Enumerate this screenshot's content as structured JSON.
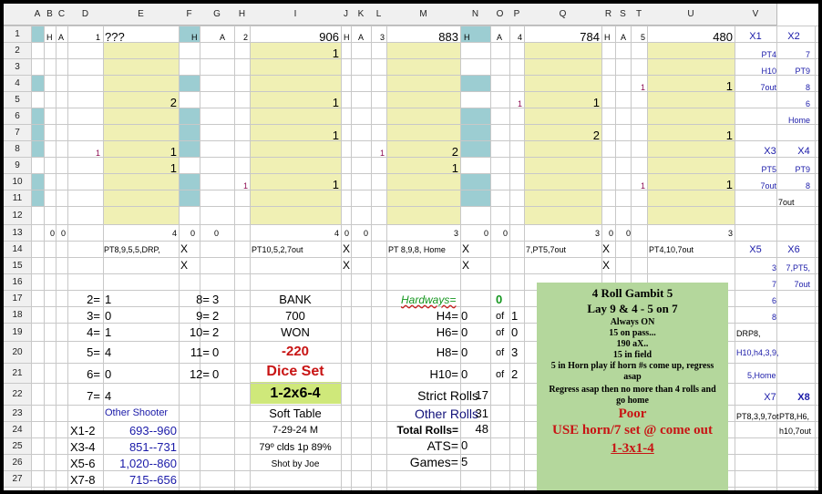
{
  "column_headers": [
    "A",
    "B",
    "C",
    "D",
    "E",
    "F",
    "G",
    "H",
    "I",
    "J",
    "K",
    "L",
    "M",
    "N",
    "O",
    "P",
    "Q",
    "R",
    "S",
    "T",
    "U",
    "V"
  ],
  "row_headers": [
    "1",
    "2",
    "3",
    "4",
    "5",
    "6",
    "7",
    "8",
    "9",
    "10",
    "11",
    "12",
    "13",
    "14",
    "15",
    "16",
    "17",
    "18",
    "19",
    "20",
    "21",
    "22",
    "23",
    "24",
    "25",
    "26",
    "27"
  ],
  "colors": {
    "yellow_fill": "#f0f0b4",
    "teal_fill": "#9ccdd2",
    "gambit_fill": "#b4d79c",
    "number_blue": "#1a1aa8",
    "count_magenta": "#8b0a50",
    "red": "#c81414",
    "green": "#14961e"
  },
  "row1": {
    "h1": "H",
    "a1": "A",
    "n1": "1",
    "q1": "???",
    "h2": "H",
    "a2": "A",
    "n2": "2",
    "s2": "906",
    "h3": "H",
    "a3": "A",
    "n3": "3",
    "s3": "883",
    "h4": "H",
    "a4": "A",
    "n4": "4",
    "s4": "784",
    "h5": "H",
    "a5": "A",
    "n5": "5",
    "s5": "480",
    "x1": "X1",
    "x2": "X2"
  },
  "grid": {
    "d5": "2",
    "d8": "1",
    "d9": "1",
    "c8": "1",
    "h2": "1",
    "h5": "1",
    "h7": "1",
    "h10": "1",
    "g10": "1",
    "l8": "2",
    "l9": "1",
    "k8": "1",
    "p5": "1",
    "p7": "2",
    "o5": "1",
    "t4": "1",
    "t7": "1",
    "t10": "1",
    "s4": "1",
    "s10": "1"
  },
  "row13": {
    "a": "0",
    "b": "0",
    "d": "4",
    "e": "0",
    "f": "0",
    "h": "4",
    "i": "0",
    "j": "0",
    "l": "3",
    "m": "0",
    "n": "0",
    "p": "3",
    "q": "0",
    "r": "0",
    "t": "3"
  },
  "row14": {
    "d": "PT8,9,5,5,DRP,",
    "e": "X",
    "h": "PT10,5,2,7out",
    "i": "X",
    "l": "PT 8,9,8, Home",
    "m": "X",
    "p": "7,PT5,7out",
    "q": "X",
    "t": "PT4,10,7out"
  },
  "row15": {
    "e": "X",
    "i": "X",
    "m": "X",
    "q": "X"
  },
  "right_panel": {
    "u2": "PT4",
    "v2": "7",
    "u3": "H10",
    "v3": "PT9",
    "u4": "7out",
    "v4": "8",
    "v5": "6",
    "v6": "Home",
    "x3": "X3",
    "x4": "X4",
    "u9": "PT5",
    "v9": "PT9",
    "u10": "7out",
    "v10": "8",
    "v11": "7out",
    "x5": "X5",
    "x6": "X6",
    "u15": "3",
    "v15": "7,PT5,",
    "u16": "7",
    "v16": "7out",
    "u17": "6",
    "u18": "8",
    "u19": "DRP8,",
    "u20": "H10,h4,3,9,",
    "u21": "5,Home",
    "x7": "X7",
    "x8": "X8",
    "u23": "PT8,3,9,7ot",
    "v23": "PT8,H6,",
    "v24": "h10,7out"
  },
  "rolls": {
    "c17": "2=",
    "d17": "1",
    "e17": "8=",
    "f17": "3",
    "c18": "3=",
    "d18": "0",
    "e18": "9=",
    "f18": "2",
    "c19": "4=",
    "d19": "1",
    "e19": "10=",
    "f19": "2",
    "c20": "5=",
    "d20": "4",
    "e20": "11=",
    "f20": "0",
    "c21": "6=",
    "d21": "0",
    "e21": "12=",
    "f21": "0",
    "c22": "7=",
    "d22": "4",
    "other_shooter": "Other  Shooter",
    "x12": "X1-2",
    "x12v": "693--960",
    "x34": "X3-4",
    "x34v": "851--731",
    "x56": "X5-6",
    "x56v": "1,020--860",
    "x78": "X7-8",
    "x78v": "715--656"
  },
  "bank": {
    "bank": "BANK",
    "bank_v": "700",
    "won": "WON",
    "won_v": "-220",
    "dice_set": "Dice Set",
    "dice_set_v": "1-2x6-4",
    "table": "Soft Table",
    "date": "7-29-24 M",
    "weather": "79º clds  1p 89%",
    "shot_by": "Shot by Joe"
  },
  "hardways": {
    "title": "Hardways=",
    "total": "0",
    "h4": "H4=",
    "h4v": "0",
    "h4of": "of",
    "h4n": "1",
    "h6": "H6=",
    "h6v": "0",
    "h6of": "of",
    "h6n": "0",
    "h8": "H8=",
    "h8v": "0",
    "h8of": "of",
    "h8n": "3",
    "h10": "H10=",
    "h10v": "0",
    "h10of": "of",
    "h10n": "2"
  },
  "stats": {
    "strict": "Strict Rolls",
    "strict_v": "17",
    "other": "Other Rolls",
    "other_v": "31",
    "total": "Total Rolls=",
    "total_v": "48",
    "ats": "ATS=",
    "ats_v": "0",
    "games": "Games=",
    "games_v": "5"
  },
  "gambit": {
    "l1": "4 Roll Gambit 5",
    "l2": "Lay 9 & 4 - 5 on 7",
    "l3": "Always ON",
    "l4": "15 on pass...",
    "l5": "190 aX..",
    "l6": "15 in field",
    "l7": "5 in Horn play if horn #s come up, regress",
    "l8": "asap",
    "l9": "Regress asap then no more than 4 rolls and",
    "l10": "go home",
    "l11": "Poor",
    "l12": "USE horn/7 set @ come out",
    "l13": "1-3x1-4"
  }
}
